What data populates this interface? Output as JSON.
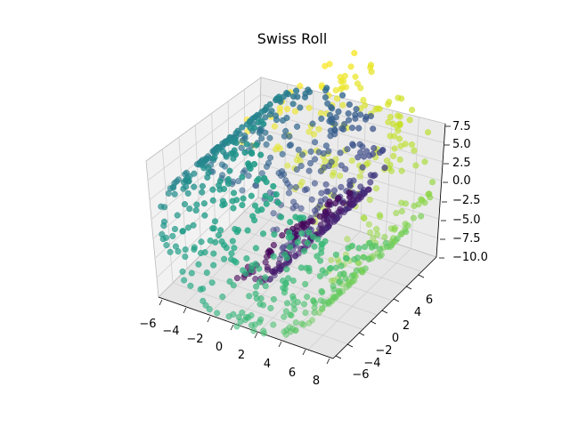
{
  "chart_data": {
    "type": "scatter",
    "projection": "3d",
    "title": "Swiss Roll",
    "colormap": "viridis",
    "n_points": 1000,
    "color_variable": "t (position along the roll, 4.7 to 14.1)",
    "t_range": [
      4.7,
      14.1
    ],
    "x_range": [
      -10,
      13
    ],
    "y_range": [
      -7,
      7
    ],
    "z_range": [
      -10,
      7.5
    ],
    "x_ticks": [
      "−6",
      "−4",
      "−2",
      "0",
      "2",
      "4",
      "6",
      "8"
    ],
    "y_ticks": [
      "−6",
      "−4",
      "−2",
      "0",
      "2",
      "4",
      "6"
    ],
    "z_ticks": [
      "7.5",
      "5.0",
      "2.5",
      "0.0",
      "−2.5",
      "−5.0",
      "−7.5",
      "−10.0"
    ],
    "marker_alpha_near": 0.9,
    "marker_alpha_far": 0.45
  }
}
